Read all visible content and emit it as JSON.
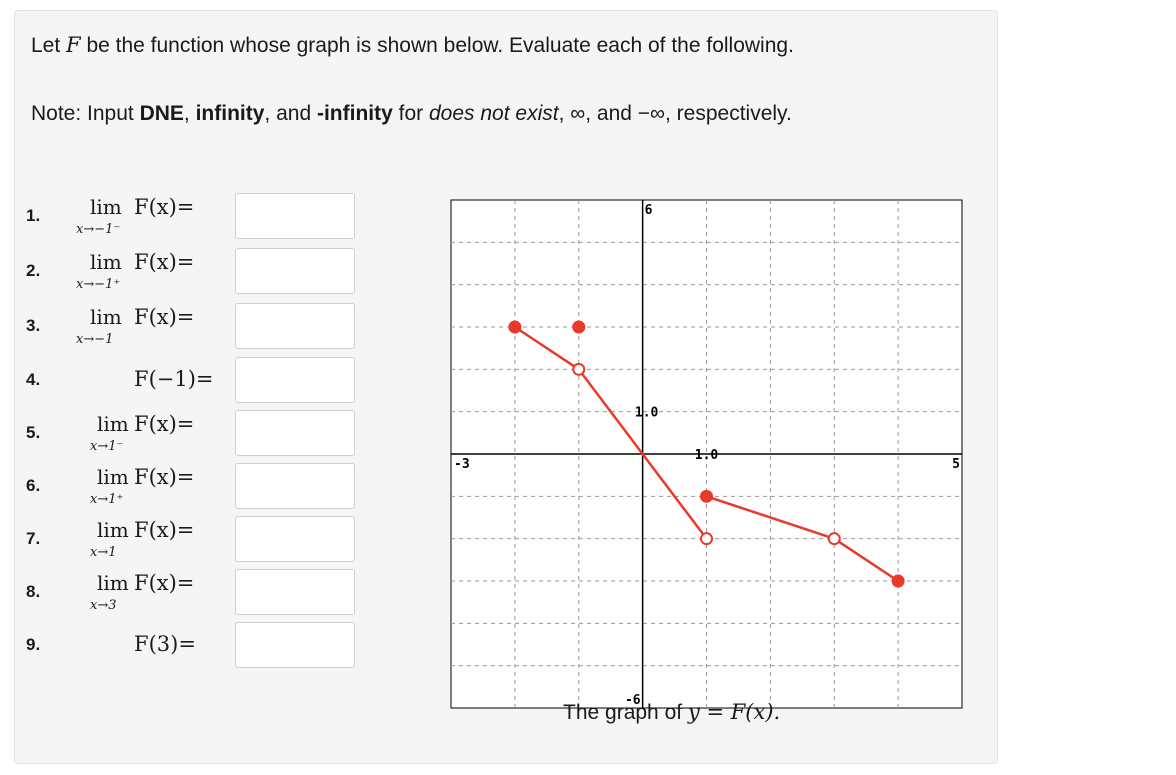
{
  "intro": {
    "prefix": "Let ",
    "fn": "F",
    "suffix": " be the function whose graph is shown below. Evaluate each of the following."
  },
  "note": {
    "a": "Note: Input ",
    "dne": "DNE",
    "b": ", ",
    "inf": "infinity",
    "c": ", and ",
    "neginf": "-infinity",
    "d": " for ",
    "dne_text": "does not exist",
    "e": ", ∞, and −∞, respectively."
  },
  "questions": [
    {
      "num": "1.",
      "lim_word": "lim",
      "sub": "x→−1⁻",
      "expr": "F(x)=",
      "answer": ""
    },
    {
      "num": "2.",
      "lim_word": "lim",
      "sub": "x→−1⁺",
      "expr": "F(x)=",
      "answer": ""
    },
    {
      "num": "3.",
      "lim_word": "lim",
      "sub": "x→−1",
      "expr": "F(x)=",
      "answer": ""
    },
    {
      "num": "4.",
      "lim_word": "",
      "sub": "",
      "expr": "F(−1)=",
      "answer": ""
    },
    {
      "num": "5.",
      "lim_word": "lim",
      "sub": "x→1⁻",
      "expr": "F(x)=",
      "answer": ""
    },
    {
      "num": "6.",
      "lim_word": "lim",
      "sub": "x→1⁺",
      "expr": "F(x)=",
      "answer": ""
    },
    {
      "num": "7.",
      "lim_word": "lim",
      "sub": "x→1",
      "expr": "F(x)=",
      "answer": ""
    },
    {
      "num": "8.",
      "lim_word": "lim",
      "sub": "x→3",
      "expr": "F(x)=",
      "answer": ""
    },
    {
      "num": "9.",
      "lim_word": "",
      "sub": "",
      "expr": "F(3)=",
      "answer": ""
    }
  ],
  "graph": {
    "caption_prefix": "The graph of ",
    "caption_math": "y = F(x).",
    "tick_xmin": "-3",
    "tick_xmax": "5",
    "tick_ymax": "6",
    "tick_ymin": "-6",
    "tick_x1": "1.0",
    "tick_y1": "1.0",
    "colors": {
      "curve": "#e8392b",
      "grid": "#9a9a9a",
      "axis": "#000000"
    }
  },
  "chart_data": {
    "type": "line",
    "xlim": [
      -3,
      5
    ],
    "ylim": [
      -6,
      6
    ],
    "grid": true,
    "segments": [
      {
        "from": [
          -2,
          3
        ],
        "to": [
          -1,
          2
        ],
        "from_closed": true,
        "to_closed": false
      },
      {
        "from": [
          -1,
          2
        ],
        "to": [
          1,
          -2
        ],
        "from_closed": false,
        "to_closed": false
      },
      {
        "from": [
          1,
          -1
        ],
        "to": [
          3,
          -2
        ],
        "from_closed": true,
        "to_closed": false
      },
      {
        "from": [
          3,
          -2
        ],
        "to": [
          4,
          -3
        ],
        "from_closed": false,
        "to_closed": true
      }
    ],
    "isolated_points": [
      {
        "x": -1,
        "y": 3,
        "closed": true
      }
    ]
  }
}
